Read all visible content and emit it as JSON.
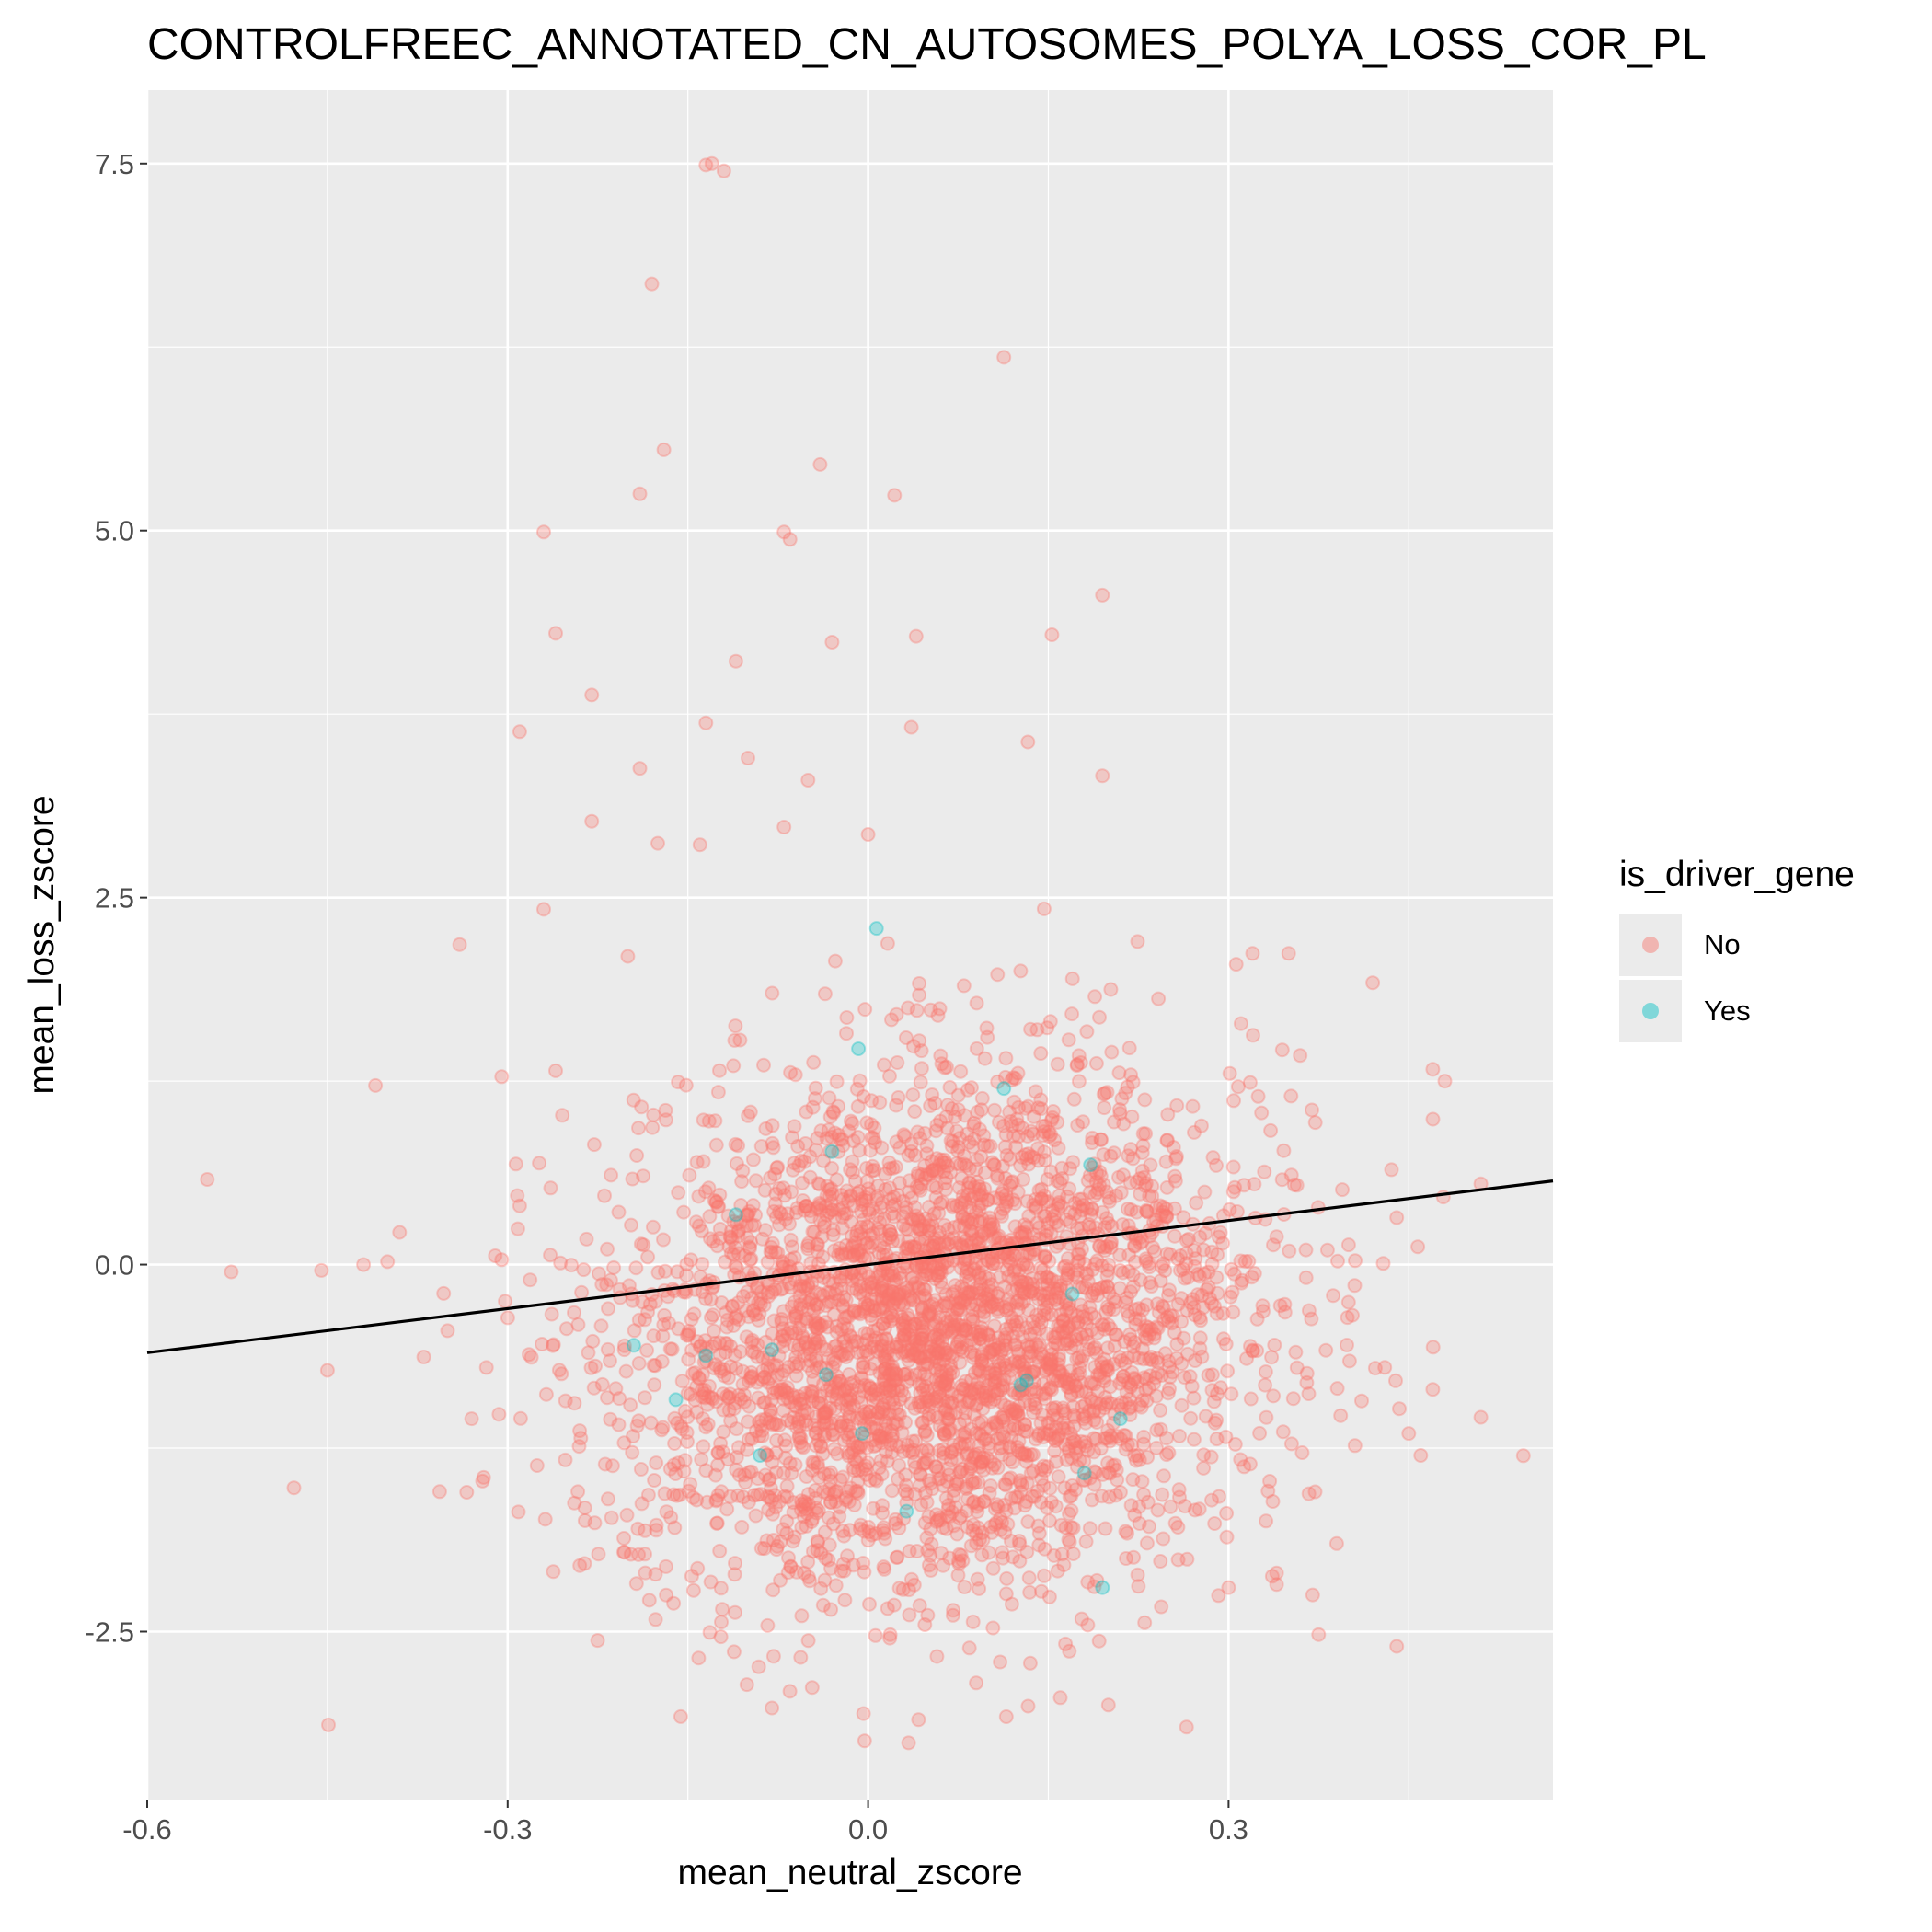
{
  "chart_data": {
    "type": "scatter",
    "title": "CONTROLFREEC_ANNOTATED_CN_AUTOSOMES_POLYA_LOSS_COR_PL",
    "xlabel": "mean_neutral_zscore",
    "ylabel": "mean_loss_zscore",
    "xlim": [
      -0.6,
      0.57
    ],
    "ylim": [
      -3.65,
      8.0
    ],
    "x_ticks": [
      -0.6,
      -0.3,
      0.0,
      0.3
    ],
    "x_tick_labels": [
      "-0.6",
      "-0.3",
      "0.0",
      "0.3"
    ],
    "y_ticks": [
      -2.5,
      0.0,
      2.5,
      5.0,
      7.5
    ],
    "y_tick_labels": [
      "-2.5",
      "0.0",
      "2.5",
      "5.0",
      "7.5"
    ],
    "grid": true,
    "legend": {
      "title": "is_driver_gene",
      "placement": "right",
      "entries": [
        {
          "label": "No",
          "color": "#F8766D"
        },
        {
          "label": "Yes",
          "color": "#00BFC4"
        }
      ]
    },
    "regression_line": {
      "slope": 1.0,
      "intercept": 0.0,
      "color": "#000000"
    },
    "series": [
      {
        "name": "No",
        "color": "#F8766D",
        "bulk_cluster": {
          "n": 3800,
          "x_mean": 0.06,
          "x_sd": 0.13,
          "y_mean": -0.45,
          "y_sd": 0.85
        },
        "points": [
          [
            -0.135,
            7.49
          ],
          [
            -0.13,
            7.5
          ],
          [
            -0.12,
            7.45
          ],
          [
            -0.18,
            6.68
          ],
          [
            0.113,
            6.18
          ],
          [
            -0.17,
            5.55
          ],
          [
            -0.04,
            5.45
          ],
          [
            0.022,
            5.24
          ],
          [
            -0.19,
            5.25
          ],
          [
            -0.27,
            4.99
          ],
          [
            -0.07,
            4.99
          ],
          [
            -0.065,
            4.94
          ],
          [
            0.195,
            4.56
          ],
          [
            -0.26,
            4.3
          ],
          [
            -0.11,
            4.11
          ],
          [
            0.153,
            4.29
          ],
          [
            0.04,
            4.28
          ],
          [
            -0.03,
            4.24
          ],
          [
            -0.23,
            3.88
          ],
          [
            -0.135,
            3.69
          ],
          [
            -0.29,
            3.63
          ],
          [
            0.036,
            3.66
          ],
          [
            0.133,
            3.56
          ],
          [
            -0.1,
            3.45
          ],
          [
            -0.19,
            3.38
          ],
          [
            0.195,
            3.33
          ],
          [
            -0.05,
            3.3
          ],
          [
            -0.23,
            3.02
          ],
          [
            -0.07,
            2.98
          ],
          [
            0.0,
            2.93
          ],
          [
            -0.14,
            2.86
          ],
          [
            -0.175,
            2.87
          ],
          [
            -0.27,
            2.42
          ],
          [
            -0.34,
            2.18
          ],
          [
            -0.39,
            0.22
          ],
          [
            -0.42,
            0.0
          ],
          [
            -0.455,
            -0.04
          ],
          [
            -0.41,
            1.22
          ],
          [
            -0.55,
            0.58
          ],
          [
            -0.45,
            -0.72
          ],
          [
            -0.53,
            -0.05
          ],
          [
            -0.4,
            0.02
          ],
          [
            0.51,
            0.55
          ],
          [
            0.48,
            1.25
          ],
          [
            0.47,
            1.33
          ],
          [
            0.51,
            -1.04
          ],
          [
            0.42,
            1.92
          ],
          [
            0.44,
            -2.6
          ],
          [
            0.37,
            -2.25
          ],
          [
            0.34,
            -2.1
          ],
          [
            0.265,
            -3.15
          ],
          [
            -0.08,
            -3.02
          ],
          [
            0.042,
            -3.1
          ],
          [
            0.115,
            -3.08
          ],
          [
            0.2,
            -3.0
          ],
          [
            0.09,
            -2.85
          ],
          [
            0.16,
            -2.95
          ],
          [
            0.35,
            2.12
          ],
          [
            0.32,
            2.12
          ],
          [
            -0.2,
            2.1
          ],
          [
            -0.26,
            1.32
          ],
          [
            -0.305,
            1.28
          ],
          [
            0.44,
            0.32
          ],
          [
            0.45,
            -1.15
          ],
          [
            0.43,
            -0.7
          ],
          [
            0.47,
            -0.85
          ],
          [
            0.46,
            -1.3
          ],
          [
            -0.32,
            -1.45
          ],
          [
            -0.29,
            0.4
          ],
          [
            -0.35,
            -0.45
          ],
          [
            -0.33,
            -1.05
          ],
          [
            0.39,
            -1.9
          ],
          [
            0.375,
            -2.52
          ],
          [
            -0.24,
            -2.05
          ],
          [
            0.3,
            -2.2
          ]
        ]
      },
      {
        "name": "Yes",
        "color": "#00BFC4",
        "points": [
          [
            0.007,
            2.29
          ],
          [
            -0.008,
            1.47
          ],
          [
            0.113,
            1.2
          ],
          [
            -0.03,
            0.77
          ],
          [
            0.185,
            0.68
          ],
          [
            -0.11,
            0.34
          ],
          [
            0.17,
            -0.2
          ],
          [
            -0.195,
            -0.55
          ],
          [
            -0.08,
            -0.58
          ],
          [
            -0.135,
            -0.62
          ],
          [
            0.132,
            -0.79
          ],
          [
            0.127,
            -0.82
          ],
          [
            -0.035,
            -0.75
          ],
          [
            -0.16,
            -0.92
          ],
          [
            0.21,
            -1.05
          ],
          [
            -0.09,
            -1.3
          ],
          [
            -0.005,
            -1.15
          ],
          [
            0.18,
            -1.42
          ],
          [
            0.032,
            -1.68
          ],
          [
            0.195,
            -2.2
          ]
        ]
      }
    ]
  }
}
